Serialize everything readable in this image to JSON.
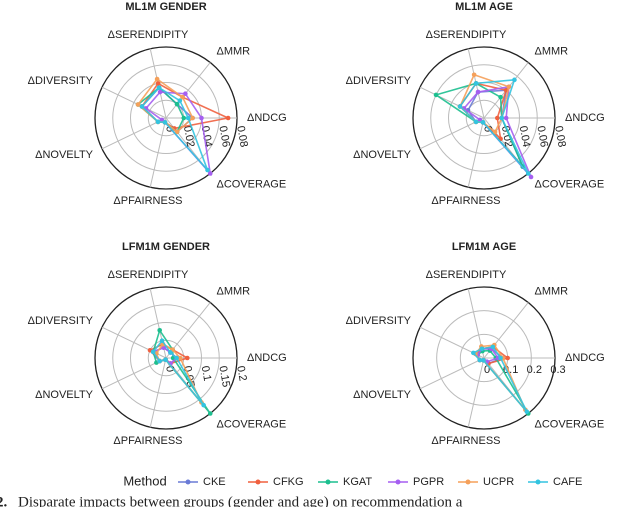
{
  "chart_data": [
    {
      "type": "radar",
      "title": "ML1M GENDER",
      "categories": [
        "ΔNDCG",
        "ΔMMR",
        "ΔSERENDIPITY",
        "ΔDIVERSITY",
        "ΔNOVELTY",
        "ΔPFAIRNESS",
        "ΔCOVERAGE"
      ],
      "ylim": [
        0,
        0.08
      ],
      "yticks": [
        0,
        0.02,
        0.04,
        0.06,
        0.08
      ],
      "grid": true,
      "legend_title": "Method",
      "series": [
        {
          "name": "CKE",
          "color": "#6a7bd6",
          "values": [
            0.03,
            0.02,
            0.035,
            0.03,
            0.01,
            0.005,
            0.02
          ]
        },
        {
          "name": "CFKG",
          "color": "#f0603f",
          "values": [
            0.07,
            0.03,
            0.04,
            0.03,
            0.01,
            0.005,
            0.015
          ]
        },
        {
          "name": "KGAT",
          "color": "#1cbf8f",
          "values": [
            0.02,
            0.02,
            0.035,
            0.035,
            0.01,
            0.005,
            0.02
          ]
        },
        {
          "name": "PGPR",
          "color": "#a55ff0",
          "values": [
            0.04,
            0.035,
            0.03,
            0.025,
            0.005,
            0.005,
            0.08
          ]
        },
        {
          "name": "UCPR",
          "color": "#f5a05a",
          "values": [
            0.03,
            0.03,
            0.045,
            0.035,
            0.01,
            0.005,
            0.02
          ]
        },
        {
          "name": "CAFE",
          "color": "#33c4e0",
          "values": [
            0.025,
            0.025,
            0.035,
            0.03,
            0.01,
            0.005,
            0.075
          ]
        }
      ]
    },
    {
      "type": "radar",
      "title": "ML1M AGE",
      "categories": [
        "ΔNDCG",
        "ΔMMR",
        "ΔSERENDIPITY",
        "ΔDIVERSITY",
        "ΔNOVELTY",
        "ΔPFAIRNESS",
        "ΔCOVERAGE"
      ],
      "ylim": [
        0,
        0.08
      ],
      "yticks": [
        0,
        0.02,
        0.04,
        0.06,
        0.08
      ],
      "grid": true,
      "series": [
        {
          "name": "CKE",
          "color": "#6a7bd6",
          "values": [
            0.02,
            0.04,
            0.03,
            0.02,
            0.01,
            0.005,
            0.07
          ]
        },
        {
          "name": "CFKG",
          "color": "#f0603f",
          "values": [
            0.015,
            0.04,
            0.04,
            0.03,
            0.01,
            0.005,
            0.03
          ]
        },
        {
          "name": "KGAT",
          "color": "#1cbf8f",
          "values": [
            0.02,
            0.03,
            0.04,
            0.06,
            0.01,
            0.005,
            0.07
          ]
        },
        {
          "name": "PGPR",
          "color": "#a55ff0",
          "values": [
            0.025,
            0.045,
            0.03,
            0.025,
            0.005,
            0.005,
            0.085
          ]
        },
        {
          "name": "UCPR",
          "color": "#f5a05a",
          "values": [
            0.02,
            0.045,
            0.05,
            0.03,
            0.01,
            0.005,
            0.02
          ]
        },
        {
          "name": "CAFE",
          "color": "#33c4e0",
          "values": [
            0.02,
            0.055,
            0.04,
            0.03,
            0.01,
            0.005,
            0.08
          ]
        }
      ]
    },
    {
      "type": "radar",
      "title": "LFM1M GENDER",
      "categories": [
        "ΔNDCG",
        "ΔMMR",
        "ΔSERENDIPITY",
        "ΔDIVERSITY",
        "ΔNOVELTY",
        "ΔPFAIRNESS",
        "ΔCOVERAGE"
      ],
      "ylim": [
        0,
        0.2
      ],
      "yticks": [
        0,
        0.05,
        0.1,
        0.15,
        0.2
      ],
      "grid": true,
      "series": [
        {
          "name": "CKE",
          "color": "#6a7bd6",
          "values": [
            0.03,
            0.02,
            0.03,
            0.04,
            0.02,
            0.005,
            0.02
          ]
        },
        {
          "name": "CFKG",
          "color": "#f0603f",
          "values": [
            0.06,
            0.03,
            0.04,
            0.05,
            0.02,
            0.005,
            0.02
          ]
        },
        {
          "name": "KGAT",
          "color": "#1cbf8f",
          "values": [
            0.02,
            0.03,
            0.08,
            0.04,
            0.03,
            0.005,
            0.2
          ]
        },
        {
          "name": "PGPR",
          "color": "#a55ff0",
          "values": [
            0.03,
            0.02,
            0.03,
            0.04,
            0.02,
            0.005,
            0.02
          ]
        },
        {
          "name": "UCPR",
          "color": "#f5a05a",
          "values": [
            0.04,
            0.03,
            0.04,
            0.03,
            0.02,
            0.005,
            0.16
          ]
        },
        {
          "name": "CAFE",
          "color": "#33c4e0",
          "values": [
            0.03,
            0.02,
            0.05,
            0.04,
            0.02,
            0.005,
            0.17
          ]
        }
      ]
    },
    {
      "type": "radar",
      "title": "LFM1M AGE",
      "categories": [
        "ΔNDCG",
        "ΔMMR",
        "ΔSERENDIPITY",
        "ΔDIVERSITY",
        "ΔNOVELTY",
        "ΔPFAIRNESS",
        "ΔCOVERAGE"
      ],
      "ylim": [
        0,
        0.3
      ],
      "yticks": [
        0,
        0.1,
        0.2,
        0.3
      ],
      "grid": true,
      "series": [
        {
          "name": "CKE",
          "color": "#6a7bd6",
          "values": [
            0.08,
            0.05,
            0.04,
            0.03,
            0.02,
            0.01,
            0.03
          ]
        },
        {
          "name": "CFKG",
          "color": "#f0603f",
          "values": [
            0.1,
            0.06,
            0.04,
            0.04,
            0.02,
            0.01,
            0.03
          ]
        },
        {
          "name": "KGAT",
          "color": "#1cbf8f",
          "values": [
            0.05,
            0.04,
            0.03,
            0.03,
            0.02,
            0.01,
            0.3
          ]
        },
        {
          "name": "PGPR",
          "color": "#a55ff0",
          "values": [
            0.06,
            0.05,
            0.04,
            0.03,
            0.02,
            0.01,
            0.02
          ]
        },
        {
          "name": "UCPR",
          "color": "#f5a05a",
          "values": [
            0.08,
            0.07,
            0.05,
            0.04,
            0.02,
            0.01,
            0.28
          ]
        },
        {
          "name": "CAFE",
          "color": "#33c4e0",
          "values": [
            0.07,
            0.06,
            0.04,
            0.05,
            0.02,
            0.01,
            0.29
          ]
        }
      ]
    }
  ],
  "caption": {
    "number": "2.",
    "text": "Disparate impacts between groups (gender and age) on recommendation a"
  }
}
